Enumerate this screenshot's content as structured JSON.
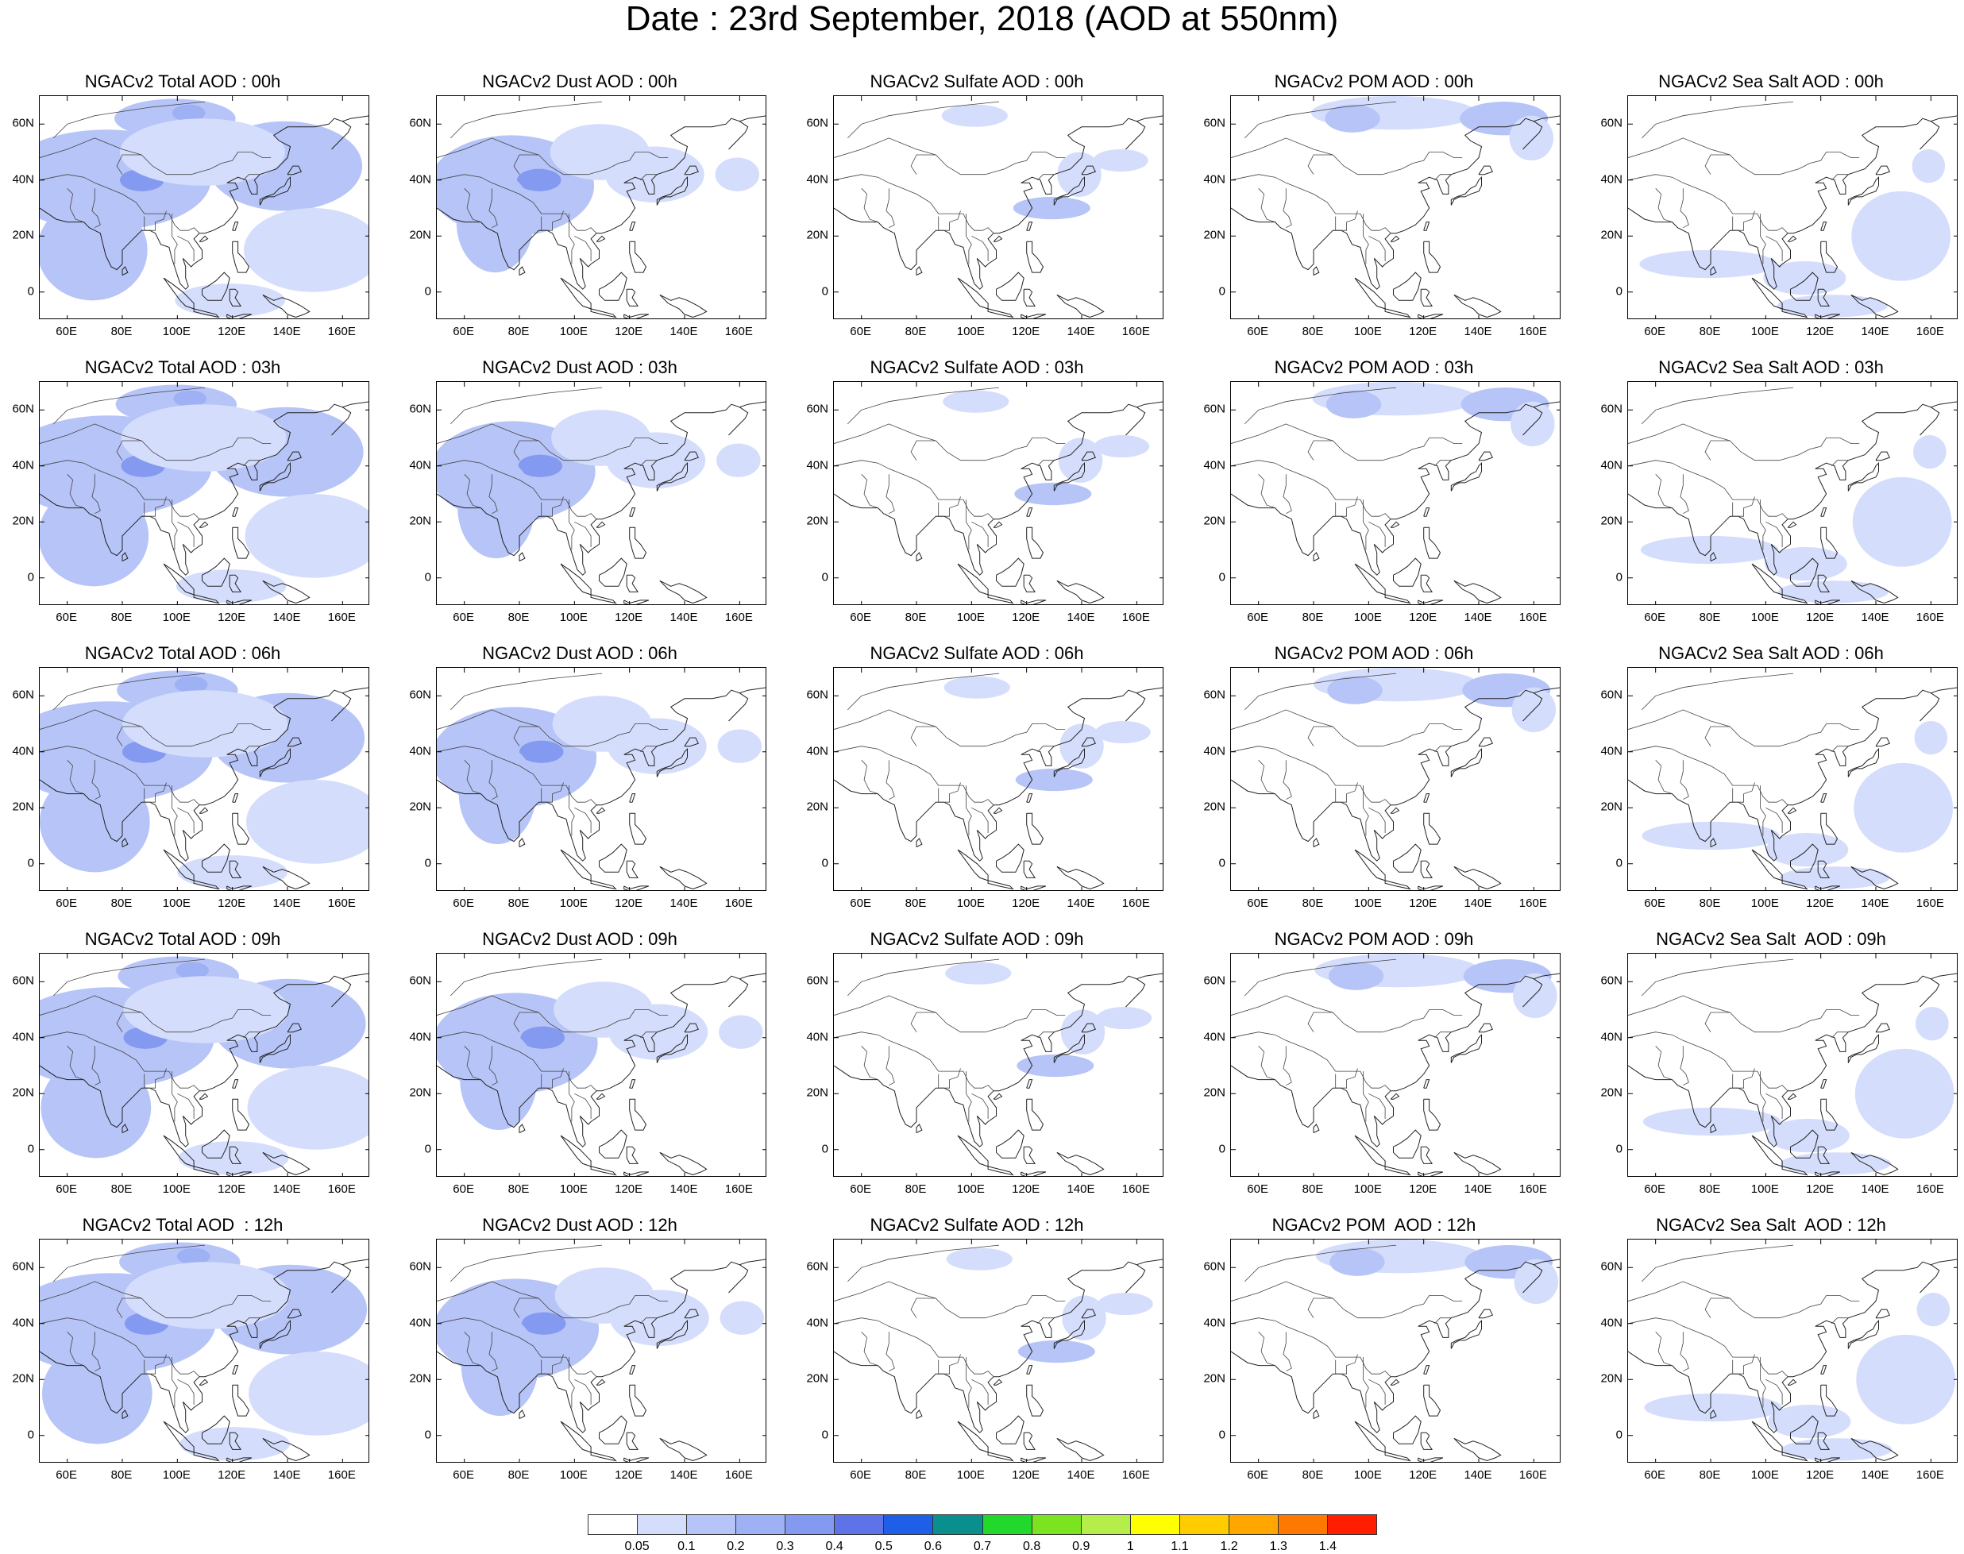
{
  "title": "Date : 23rd September, 2018 (AOD at 550nm)",
  "axis_ticks": {
    "x": [
      {
        "lon": 60,
        "label": "60E"
      },
      {
        "lon": 80,
        "label": "80E"
      },
      {
        "lon": 100,
        "label": "100E"
      },
      {
        "lon": 120,
        "label": "120E"
      },
      {
        "lon": 140,
        "label": "140E"
      },
      {
        "lon": 160,
        "label": "160E"
      }
    ],
    "y": [
      {
        "lat": 60,
        "label": "60N"
      },
      {
        "lat": 40,
        "label": "40N"
      },
      {
        "lat": 20,
        "label": "20N"
      },
      {
        "lat": 0,
        "label": "0"
      }
    ]
  },
  "map_extent": {
    "lon_min": 50,
    "lon_max": 170,
    "lat_min": -10,
    "lat_max": 70
  },
  "colorbar": {
    "colors": [
      "#ffffff",
      "#d4ddfb",
      "#b6c4f7",
      "#9fb1f5",
      "#8499f0",
      "#5f73e8",
      "#1f5fe8",
      "#0a8f8f",
      "#22d82b",
      "#7be31f",
      "#b5ed4a",
      "#ffff00",
      "#ffcc00",
      "#ffa600",
      "#ff7800",
      "#ff1e00"
    ],
    "labels": [
      "0.05",
      "0.1",
      "0.2",
      "0.3",
      "0.4",
      "0.5",
      "0.6",
      "0.7",
      "0.8",
      "0.9",
      "1",
      "1.1",
      "1.2",
      "1.3",
      "1.4"
    ]
  },
  "panel_titles": [
    [
      "NGACv2 Total AOD : 00h",
      "NGACv2 Dust AOD : 00h",
      "NGACv2 Sulfate AOD : 00h",
      "NGACv2 POM AOD : 00h",
      "NGACv2 Sea Salt AOD : 00h"
    ],
    [
      "NGACv2 Total AOD : 03h",
      "NGACv2 Dust AOD : 03h",
      "NGACv2 Sulfate AOD : 03h",
      "NGACv2 POM AOD : 03h",
      "NGACv2 Sea Salt AOD : 03h"
    ],
    [
      "NGACv2 Total AOD : 06h",
      "NGACv2 Dust AOD : 06h",
      "NGACv2 Sulfate AOD : 06h",
      "NGACv2 POM AOD : 06h",
      "NGACv2 Sea Salt AOD : 06h"
    ],
    [
      "NGACv2 Total AOD : 09h",
      "NGACv2 Dust AOD : 09h",
      "NGACv2 Sulfate AOD : 09h",
      "NGACv2 POM AOD : 09h",
      "NGACv2 Sea Salt  AOD : 09h"
    ],
    [
      "NGACv2 Total AOD  : 12h",
      "NGACv2 Dust AOD : 12h",
      "NGACv2 Sulfate AOD : 12h",
      "NGACv2 POM  AOD : 12h",
      "NGACv2 Sea Salt  AOD : 12h"
    ]
  ],
  "species_fields": {
    "total": [
      {
        "lon": 75,
        "lat": 40,
        "rlon": 38,
        "rlat": 18,
        "level": 2
      },
      {
        "lon": 88,
        "lat": 40,
        "rlon": 8,
        "rlat": 4,
        "level": 4
      },
      {
        "lon": 100,
        "lat": 62,
        "rlon": 22,
        "rlat": 7,
        "level": 2
      },
      {
        "lon": 105,
        "lat": 64,
        "rlon": 6,
        "rlat": 3,
        "level": 3
      },
      {
        "lon": 140,
        "lat": 45,
        "rlon": 28,
        "rlat": 16,
        "level": 2
      },
      {
        "lon": 70,
        "lat": 15,
        "rlon": 20,
        "rlat": 18,
        "level": 2
      },
      {
        "lon": 150,
        "lat": 15,
        "rlon": 25,
        "rlat": 15,
        "level": 1
      },
      {
        "lon": 110,
        "lat": 50,
        "rlon": 30,
        "rlat": 12,
        "level": 1
      },
      {
        "lon": 120,
        "lat": -3,
        "rlon": 20,
        "rlat": 6,
        "level": 1
      }
    ],
    "dust": [
      {
        "lon": 78,
        "lat": 38,
        "rlon": 30,
        "rlat": 18,
        "level": 2
      },
      {
        "lon": 88,
        "lat": 40,
        "rlon": 8,
        "rlat": 4,
        "level": 4
      },
      {
        "lon": 72,
        "lat": 25,
        "rlon": 14,
        "rlat": 18,
        "level": 2
      },
      {
        "lon": 110,
        "lat": 50,
        "rlon": 18,
        "rlat": 10,
        "level": 1
      },
      {
        "lon": 130,
        "lat": 42,
        "rlon": 18,
        "rlat": 10,
        "level": 1
      },
      {
        "lon": 160,
        "lat": 42,
        "rlon": 8,
        "rlat": 6,
        "level": 1
      }
    ],
    "sulfate": [
      {
        "lon": 102,
        "lat": 63,
        "rlon": 12,
        "rlat": 4,
        "level": 1
      },
      {
        "lon": 130,
        "lat": 30,
        "rlon": 14,
        "rlat": 4,
        "level": 2
      },
      {
        "lon": 140,
        "lat": 42,
        "rlon": 8,
        "rlat": 8,
        "level": 1
      },
      {
        "lon": 155,
        "lat": 47,
        "rlon": 10,
        "rlat": 4,
        "level": 1
      }
    ],
    "pom": [
      {
        "lon": 110,
        "lat": 64,
        "rlon": 30,
        "rlat": 6,
        "level": 1
      },
      {
        "lon": 95,
        "lat": 62,
        "rlon": 10,
        "rlat": 5,
        "level": 2
      },
      {
        "lon": 150,
        "lat": 62,
        "rlon": 16,
        "rlat": 6,
        "level": 2
      },
      {
        "lon": 160,
        "lat": 55,
        "rlon": 8,
        "rlat": 8,
        "level": 1
      }
    ],
    "seasalt": [
      {
        "lon": 150,
        "lat": 20,
        "rlon": 18,
        "rlat": 16,
        "level": 1
      },
      {
        "lon": 80,
        "lat": 10,
        "rlon": 25,
        "rlat": 5,
        "level": 1
      },
      {
        "lon": 115,
        "lat": 5,
        "rlon": 15,
        "rlat": 6,
        "level": 1
      },
      {
        "lon": 125,
        "lat": -5,
        "rlon": 20,
        "rlat": 4,
        "level": 1
      },
      {
        "lon": 160,
        "lat": 45,
        "rlon": 6,
        "rlat": 6,
        "level": 1
      }
    ]
  },
  "coastlines": [
    [
      [
        50,
        30
      ],
      [
        56,
        26
      ],
      [
        60,
        25
      ],
      [
        66,
        25
      ],
      [
        68,
        23
      ],
      [
        72,
        21
      ],
      [
        73,
        17
      ],
      [
        74,
        13
      ],
      [
        76,
        9
      ],
      [
        78,
        8
      ],
      [
        80,
        10
      ],
      [
        80,
        15
      ],
      [
        82,
        17
      ],
      [
        85,
        20
      ],
      [
        87,
        22
      ],
      [
        90,
        22
      ],
      [
        92,
        21
      ],
      [
        94,
        17
      ],
      [
        97,
        16
      ],
      [
        98,
        12
      ],
      [
        99,
        9
      ],
      [
        100,
        6
      ],
      [
        101,
        3
      ],
      [
        103,
        1
      ],
      [
        104,
        2
      ],
      [
        103,
        5
      ],
      [
        103,
        9
      ],
      [
        102,
        12
      ],
      [
        105,
        9
      ],
      [
        106,
        10
      ],
      [
        109,
        12
      ],
      [
        109,
        15
      ],
      [
        106,
        19
      ],
      [
        108,
        21
      ],
      [
        110,
        21
      ],
      [
        113,
        22
      ],
      [
        117,
        24
      ],
      [
        120,
        27
      ],
      [
        122,
        30
      ],
      [
        121,
        32
      ],
      [
        120,
        34
      ],
      [
        119,
        36
      ],
      [
        122,
        37
      ],
      [
        121,
        39
      ],
      [
        118,
        39
      ],
      [
        122,
        41
      ],
      [
        125,
        40
      ],
      [
        126,
        37
      ],
      [
        127,
        35
      ],
      [
        129,
        35
      ],
      [
        129,
        38
      ],
      [
        128,
        40
      ],
      [
        130,
        42
      ],
      [
        133,
        43
      ],
      [
        136,
        44
      ],
      [
        140,
        48
      ],
      [
        141,
        52
      ],
      [
        137,
        54
      ],
      [
        135,
        56
      ],
      [
        140,
        59
      ],
      [
        145,
        59
      ],
      [
        150,
        59
      ],
      [
        155,
        60
      ],
      [
        157,
        62
      ],
      [
        160,
        61
      ],
      [
        163,
        62
      ],
      [
        170,
        63
      ]
    ],
    [
      [
        156,
        51
      ],
      [
        158,
        53
      ],
      [
        160,
        55
      ],
      [
        162,
        57
      ],
      [
        163,
        59
      ],
      [
        160,
        61
      ]
    ],
    [
      [
        130,
        31
      ],
      [
        131,
        33
      ],
      [
        133,
        34
      ],
      [
        135,
        34
      ],
      [
        137,
        35
      ],
      [
        140,
        36
      ],
      [
        141,
        38
      ],
      [
        141,
        41
      ],
      [
        140,
        40
      ],
      [
        139,
        38
      ],
      [
        137,
        37
      ],
      [
        135,
        35
      ],
      [
        132,
        34
      ],
      [
        130,
        33
      ],
      [
        130,
        31
      ]
    ],
    [
      [
        140,
        42
      ],
      [
        142,
        42
      ],
      [
        145,
        43
      ],
      [
        144,
        45
      ],
      [
        142,
        45
      ],
      [
        140,
        42
      ]
    ],
    [
      [
        80,
        6
      ],
      [
        82,
        7
      ],
      [
        81,
        9
      ],
      [
        80,
        8
      ],
      [
        80,
        6
      ]
    ],
    [
      [
        95,
        5
      ],
      [
        98,
        3
      ],
      [
        102,
        0
      ],
      [
        104,
        -2
      ],
      [
        106,
        -4
      ],
      [
        106,
        -6
      ],
      [
        103,
        -5
      ],
      [
        101,
        -3
      ],
      [
        98,
        1
      ],
      [
        95,
        5
      ]
    ],
    [
      [
        106,
        -6
      ],
      [
        110,
        -7
      ],
      [
        114,
        -8
      ],
      [
        115,
        -9
      ],
      [
        110,
        -8
      ],
      [
        106,
        -7
      ],
      [
        106,
        -6
      ]
    ],
    [
      [
        109,
        1
      ],
      [
        111,
        2
      ],
      [
        114,
        4
      ],
      [
        117,
        7
      ],
      [
        119,
        5
      ],
      [
        118,
        1
      ],
      [
        116,
        -3
      ],
      [
        111,
        -3
      ],
      [
        109,
        -1
      ],
      [
        109,
        1
      ]
    ],
    [
      [
        119,
        1
      ],
      [
        121,
        1
      ],
      [
        122,
        0
      ],
      [
        121,
        -2
      ],
      [
        123,
        -5
      ],
      [
        120,
        -5
      ],
      [
        119,
        -3
      ],
      [
        119,
        1
      ]
    ],
    [
      [
        131,
        -1
      ],
      [
        135,
        -3
      ],
      [
        138,
        -2
      ],
      [
        141,
        -3
      ],
      [
        145,
        -5
      ],
      [
        148,
        -7
      ],
      [
        146,
        -8
      ],
      [
        143,
        -9
      ],
      [
        140,
        -8
      ],
      [
        138,
        -6
      ],
      [
        134,
        -4
      ],
      [
        131,
        -1
      ]
    ],
    [
      [
        120,
        18
      ],
      [
        122,
        18
      ],
      [
        122,
        14
      ],
      [
        124,
        12
      ],
      [
        126,
        9
      ],
      [
        125,
        7
      ],
      [
        122,
        7
      ],
      [
        121,
        10
      ],
      [
        120,
        14
      ],
      [
        120,
        18
      ]
    ],
    [
      [
        120,
        22
      ],
      [
        121,
        25
      ],
      [
        122,
        25
      ],
      [
        121,
        22
      ],
      [
        120,
        22
      ]
    ],
    [
      [
        108,
        18
      ],
      [
        110,
        20
      ],
      [
        111,
        19
      ],
      [
        109,
        18
      ],
      [
        108,
        18
      ]
    ],
    [
      [
        118,
        -8
      ],
      [
        120,
        -9
      ],
      [
        124,
        -8
      ],
      [
        127,
        -8
      ],
      [
        124,
        -9
      ],
      [
        121,
        -10
      ],
      [
        118,
        -9
      ],
      [
        118,
        -8
      ]
    ]
  ],
  "borders": [
    [
      [
        50,
        40
      ],
      [
        55,
        41
      ],
      [
        60,
        42
      ],
      [
        66,
        41
      ],
      [
        70,
        39
      ],
      [
        75,
        37
      ],
      [
        80,
        35
      ],
      [
        85,
        32
      ],
      [
        88,
        28
      ],
      [
        92,
        28
      ],
      [
        97,
        28
      ],
      [
        99,
        24
      ],
      [
        101,
        22
      ],
      [
        104,
        22
      ],
      [
        106,
        23
      ],
      [
        108,
        21
      ]
    ],
    [
      [
        50,
        48
      ],
      [
        60,
        51
      ],
      [
        70,
        55
      ],
      [
        80,
        51
      ],
      [
        87,
        49
      ],
      [
        91,
        45
      ],
      [
        96,
        42
      ],
      [
        105,
        42
      ],
      [
        112,
        44
      ],
      [
        116,
        46
      ],
      [
        120,
        47
      ],
      [
        122,
        50
      ],
      [
        127,
        50
      ],
      [
        131,
        48
      ],
      [
        134,
        48
      ]
    ],
    [
      [
        60,
        37
      ],
      [
        62,
        35
      ],
      [
        61,
        30
      ],
      [
        63,
        26
      ],
      [
        66,
        25
      ]
    ],
    [
      [
        70,
        37
      ],
      [
        70,
        33
      ],
      [
        69,
        29
      ],
      [
        71,
        27
      ],
      [
        72,
        24
      ],
      [
        70,
        23
      ]
    ],
    [
      [
        80,
        42
      ],
      [
        78,
        45
      ],
      [
        80,
        49
      ],
      [
        87,
        49
      ]
    ],
    [
      [
        88,
        27
      ],
      [
        88,
        22
      ],
      [
        92,
        22
      ],
      [
        92,
        25
      ],
      [
        95,
        26
      ],
      [
        96,
        29
      ]
    ],
    [
      [
        98,
        28
      ],
      [
        98,
        20
      ],
      [
        100,
        17
      ],
      [
        99,
        15
      ],
      [
        99,
        10
      ]
    ],
    [
      [
        100,
        20
      ],
      [
        104,
        18
      ],
      [
        106,
        15
      ],
      [
        106,
        11
      ]
    ],
    [
      [
        124,
        40
      ],
      [
        126,
        42
      ],
      [
        128,
        42
      ],
      [
        130,
        42
      ]
    ],
    [
      [
        55,
        55
      ],
      [
        60,
        60
      ],
      [
        70,
        63
      ],
      [
        90,
        66
      ],
      [
        110,
        68
      ]
    ]
  ]
}
